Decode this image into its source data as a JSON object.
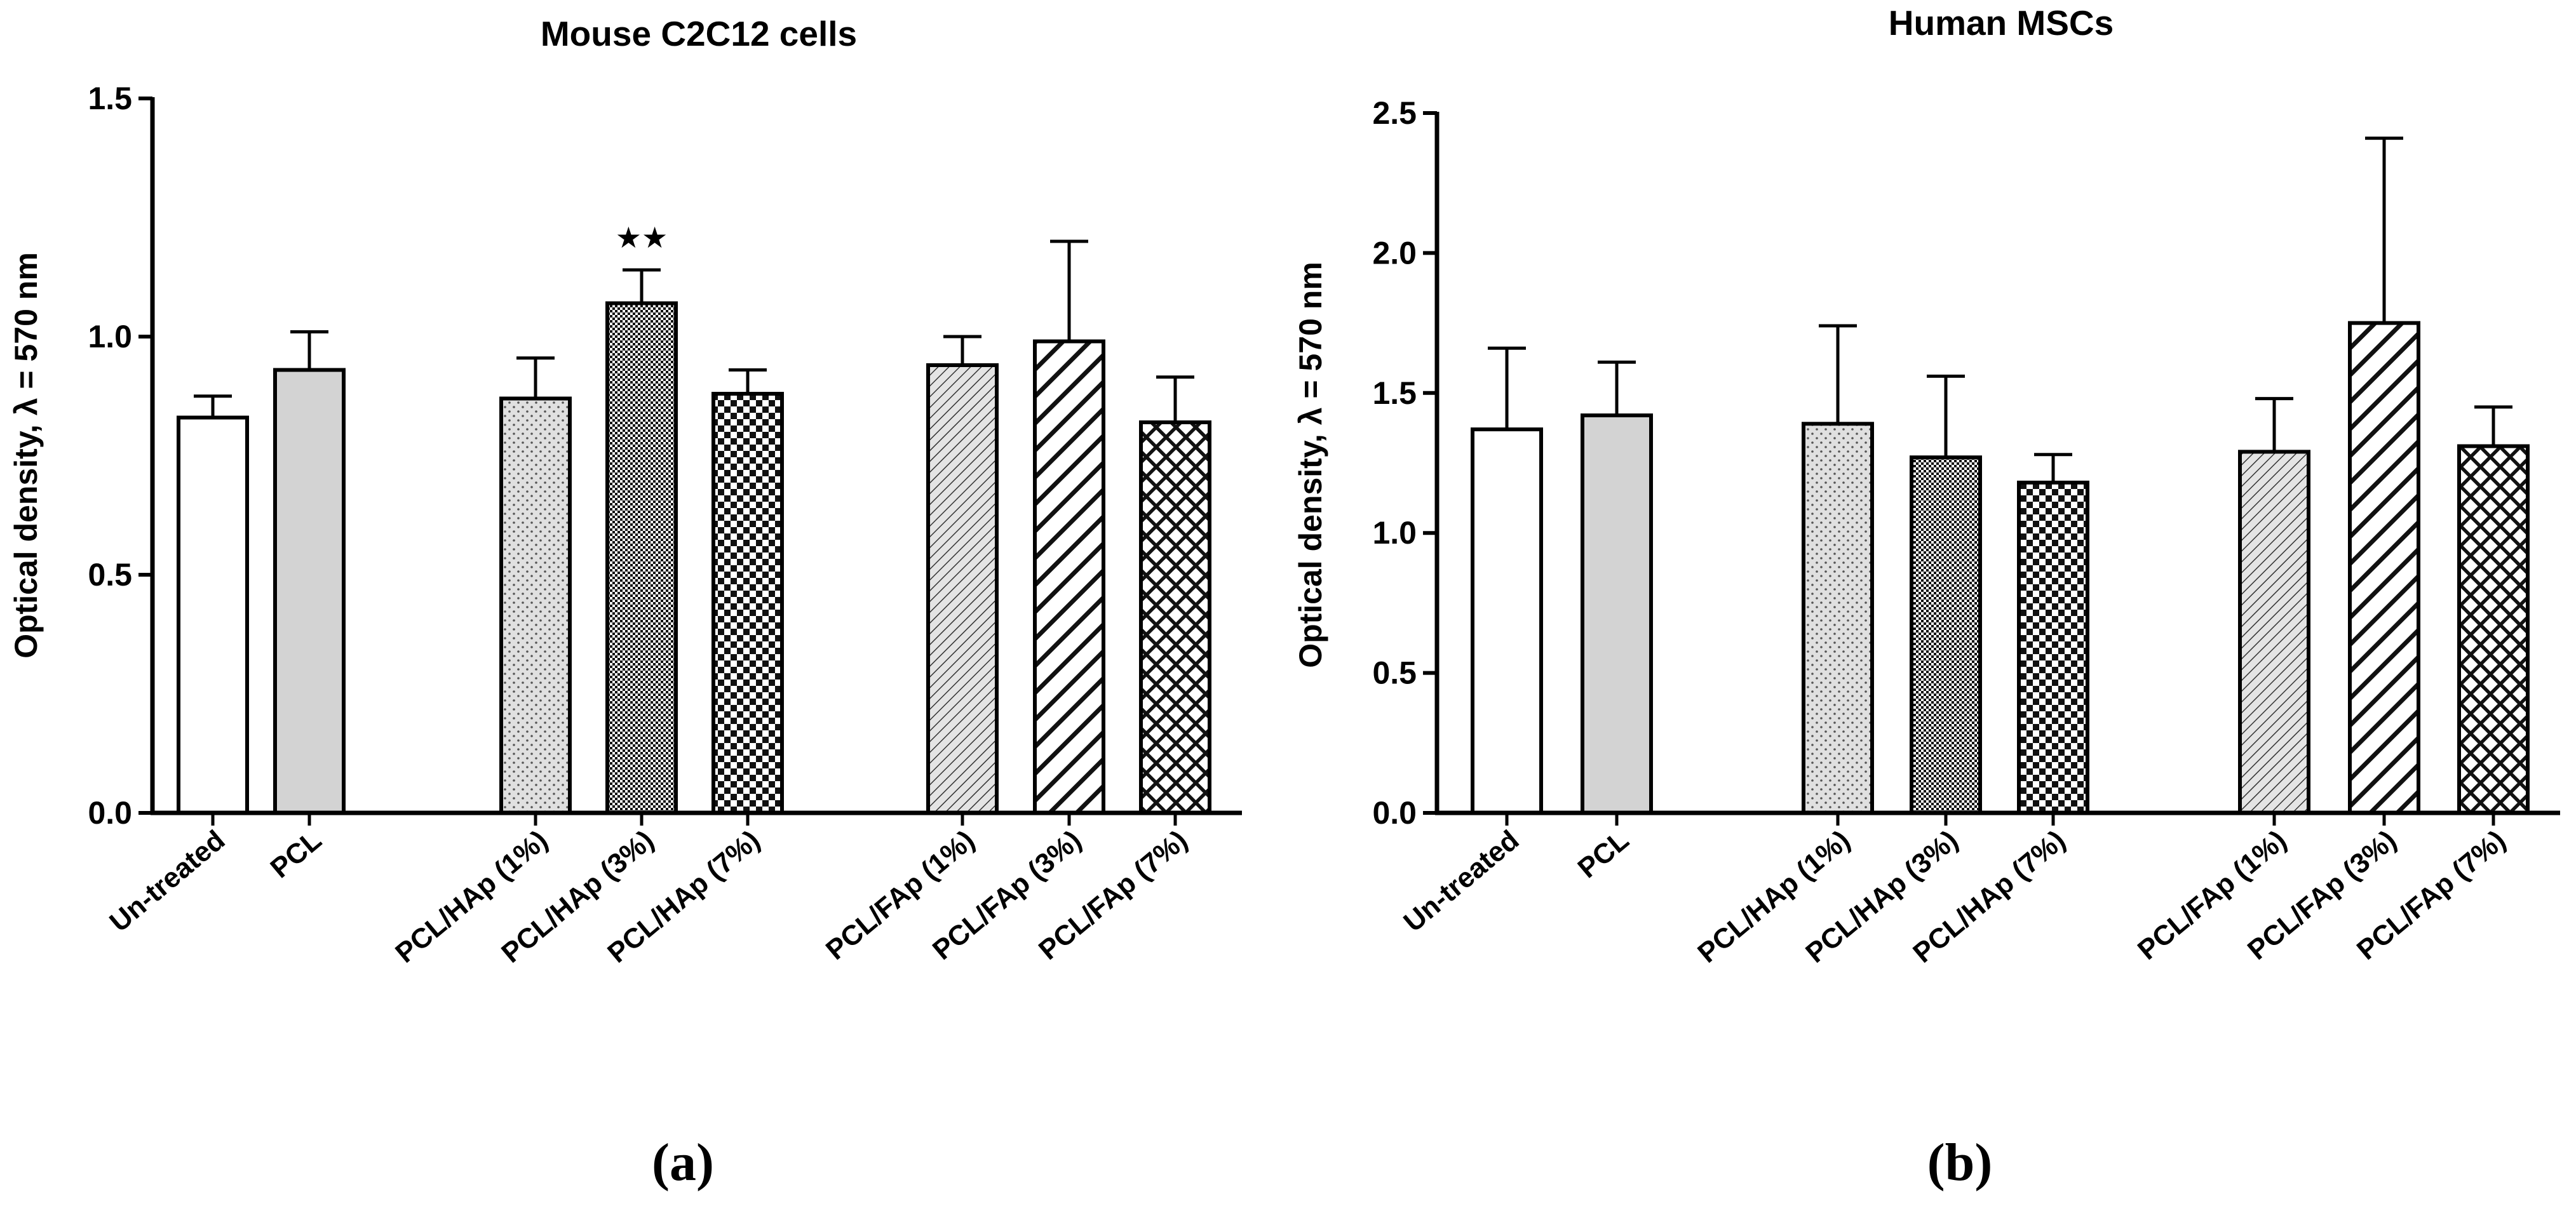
{
  "chart_data": [
    {
      "type": "bar",
      "title": "Mouse C2C12 cells",
      "panel_label": "(a)",
      "ylabel": "Optical density, λ = 570 nm",
      "xlabel": "",
      "ylim": [
        0,
        1.5
      ],
      "yticks": [
        "0.0",
        "0.5",
        "1.0",
        "1.5"
      ],
      "ytick_values": [
        0,
        0.5,
        1.0,
        1.5
      ],
      "grid": false,
      "categories": [
        "Un-treated",
        "PCL",
        "PCL/HAp (1%)",
        "PCL/HAp (3%)",
        "PCL/HAp (7%)",
        "PCL/FAp (1%)",
        "PCL/FAp (3%)",
        "PCL/FAp (7%)"
      ],
      "values": [
        0.83,
        0.93,
        0.87,
        1.07,
        0.88,
        0.94,
        0.99,
        0.82
      ],
      "errors": [
        0.045,
        0.08,
        0.085,
        0.07,
        0.05,
        0.06,
        0.21,
        0.095
      ],
      "patterns": [
        "white",
        "gray",
        "dots",
        "grid-fine",
        "checker",
        "diag-fine",
        "diag-wide",
        "crosshatch"
      ],
      "annotations": [
        {
          "category": "PCL/HAp (3%)",
          "text": "★★"
        }
      ]
    },
    {
      "type": "bar",
      "title": "Human MSCs",
      "panel_label": "(b)",
      "ylabel": "Optical density, λ = 570 nm",
      "xlabel": "",
      "ylim": [
        0,
        2.5
      ],
      "yticks": [
        "0.0",
        "0.5",
        "1.0",
        "1.5",
        "2.0",
        "2.5"
      ],
      "ytick_values": [
        0,
        0.5,
        1.0,
        1.5,
        2.0,
        2.5
      ],
      "grid": false,
      "categories": [
        "Un-treated",
        "PCL",
        "PCL/HAp (1%)",
        "PCL/HAp (3%)",
        "PCL/HAp (7%)",
        "PCL/FAp (1%)",
        "PCL/FAp (3%)",
        "PCL/FAp (7%)"
      ],
      "values": [
        1.37,
        1.42,
        1.39,
        1.27,
        1.18,
        1.29,
        1.75,
        1.31
      ],
      "errors": [
        0.29,
        0.19,
        0.35,
        0.29,
        0.1,
        0.19,
        0.66,
        0.14
      ],
      "patterns": [
        "white",
        "gray",
        "dots",
        "grid-fine",
        "checker",
        "diag-fine",
        "diag-wide",
        "crosshatch"
      ],
      "annotations": []
    }
  ]
}
